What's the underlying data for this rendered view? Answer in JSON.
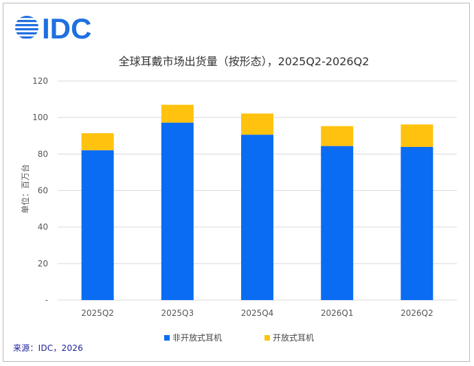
{
  "brand": {
    "name": "IDC",
    "color": "#1f6fe0"
  },
  "source": "来源：IDC，2026",
  "chart_data": {
    "type": "bar",
    "stacked": true,
    "title": "全球耳戴市场出货量（按形态），2025Q2-2026Q2",
    "ylabel": "单位：百万台",
    "xlabel": "",
    "ylim": [
      0,
      120
    ],
    "yticks": [
      0,
      20,
      40,
      60,
      80,
      100,
      120
    ],
    "ytick_labels": [
      "-",
      "20",
      "40",
      "60",
      "80",
      "100",
      "120"
    ],
    "grid": true,
    "legend_position": "bottom",
    "categories": [
      "2025Q2",
      "2025Q3",
      "2025Q4",
      "2026Q1",
      "2026Q2"
    ],
    "series": [
      {
        "name": "非开放式耳机",
        "color": "#0a6cf2",
        "values": [
          82.1,
          97.2,
          90.6,
          84.4,
          83.9
        ]
      },
      {
        "name": "开放式耳机",
        "color": "#ffc20e",
        "values": [
          9.3,
          9.8,
          11.6,
          10.9,
          12.3
        ]
      }
    ]
  }
}
